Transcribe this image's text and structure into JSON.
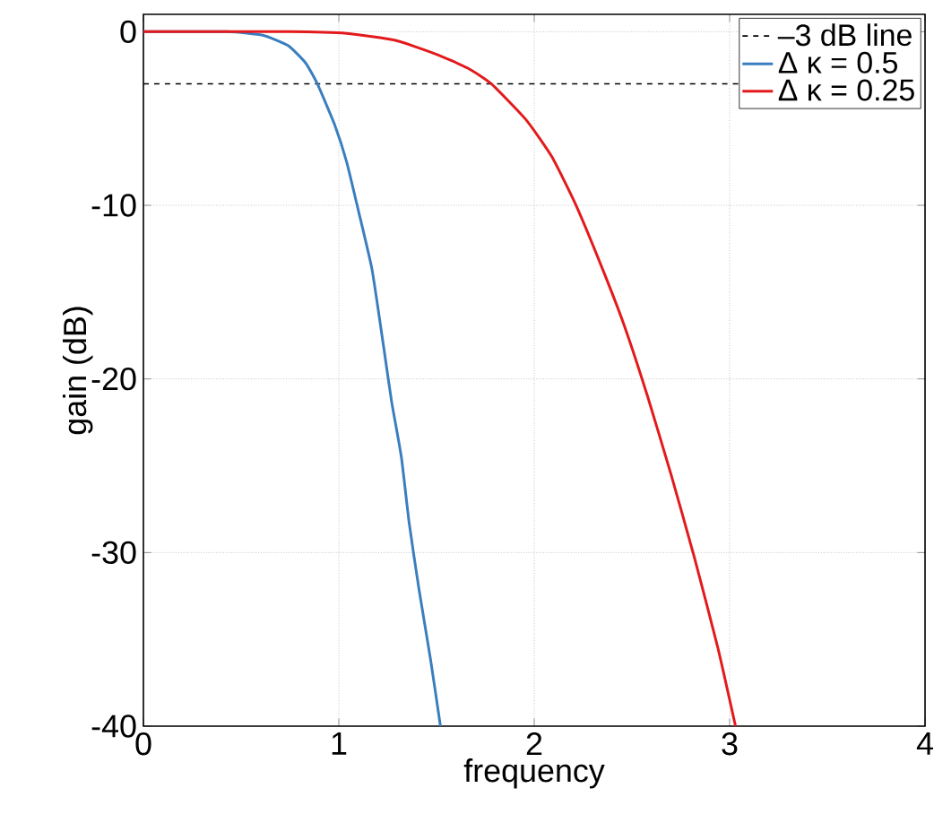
{
  "chart_data": {
    "type": "line",
    "xlabel": "frequency",
    "ylabel": "gain (dB)",
    "x": [
      0,
      0.43,
      0.61,
      0.74,
      0.83,
      0.89,
      0.98,
      1.04,
      1.1,
      1.17,
      1.23,
      1.27,
      1.32,
      1.36,
      1.41,
      1.47,
      1.52
    ],
    "series": [
      {
        "name": "Δ κ = 0.5",
        "color": "#3a7ebf",
        "values": [
          0,
          0,
          -0.2,
          -0.8,
          -1.8,
          -3,
          -5.4,
          -7.5,
          -10.3,
          -13.7,
          -18.2,
          -21.3,
          -24.5,
          -28.3,
          -32.1,
          -36.2,
          -40
        ]
      },
      {
        "name": "Δ κ = 0.25",
        "color": "#e31a1c",
        "x": [
          0,
          0.74,
          1.04,
          1.29,
          1.5,
          1.66,
          1.78,
          1.96,
          2.09,
          2.21,
          2.34,
          2.46,
          2.58,
          2.7,
          2.82,
          2.94,
          3.03
        ],
        "values": [
          0,
          0,
          -0.1,
          -0.5,
          -1.3,
          -2.1,
          -3,
          -5.1,
          -7.2,
          -9.9,
          -13.4,
          -16.9,
          -21,
          -25.5,
          -30.3,
          -35.5,
          -40
        ]
      }
    ],
    "xlim": [
      0,
      4
    ],
    "ylim": [
      -40,
      1
    ],
    "xticks": [
      0,
      1,
      2,
      3,
      4
    ],
    "yticks": [
      -40,
      -30,
      -20,
      -10,
      0
    ],
    "ref_lines": [
      {
        "axis": "y",
        "value": -3,
        "label": "–3 dB line",
        "color": "#000000",
        "line_style": "dashed"
      }
    ],
    "grid": true,
    "legend": "top right",
    "marker": "none",
    "line_style": "solid"
  }
}
